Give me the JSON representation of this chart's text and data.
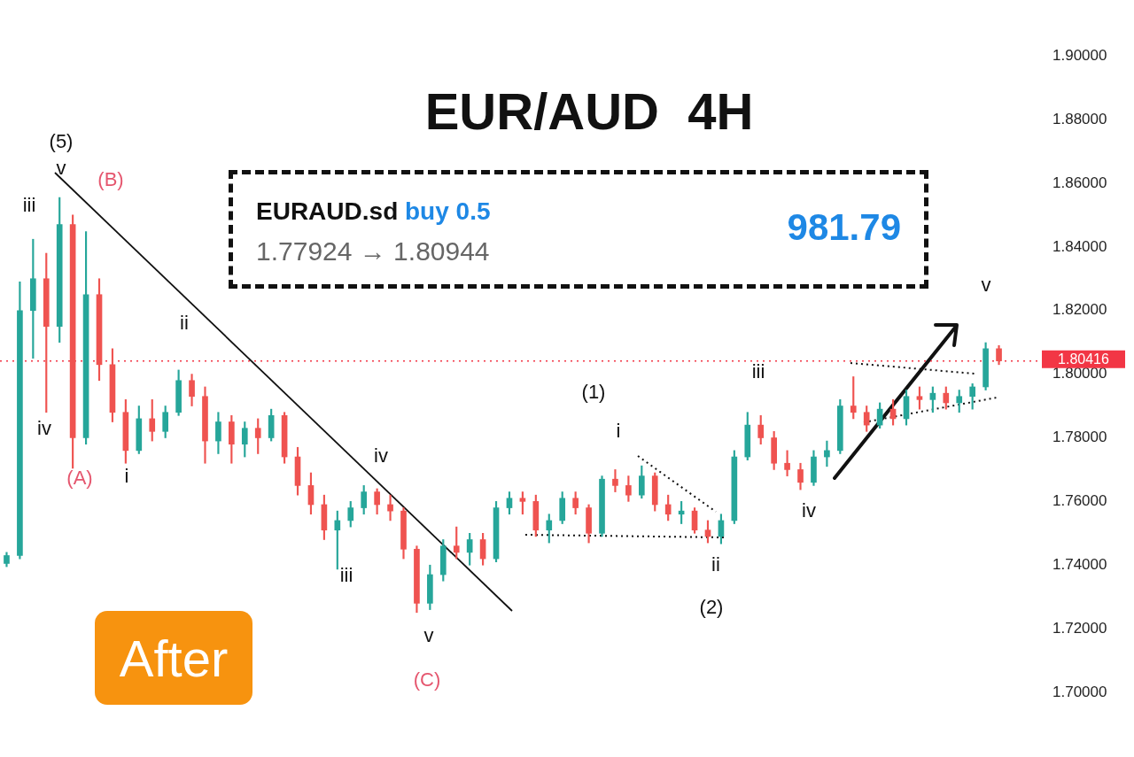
{
  "chart_data": {
    "type": "candlestick",
    "title": "EUR/AUD  4H",
    "categories": [
      null,
      null,
      null,
      null,
      null,
      null,
      null,
      null,
      null,
      null,
      null,
      null,
      null,
      null,
      null,
      null,
      null,
      null,
      null,
      null,
      null,
      null,
      null,
      null,
      null,
      null,
      null,
      null,
      null,
      null,
      null,
      null,
      null,
      null,
      null,
      null,
      null,
      null,
      null,
      null,
      null,
      null,
      null,
      null,
      null,
      null,
      null,
      null,
      null,
      null,
      null,
      null,
      null,
      null,
      null,
      null,
      null,
      null,
      null,
      null,
      null,
      null,
      null,
      null,
      null,
      null,
      null,
      null,
      null,
      null,
      null,
      null,
      null,
      null,
      null,
      null
    ],
    "ohlc": [
      [
        1.7405,
        1.744,
        1.7395,
        1.743
      ],
      [
        1.743,
        1.829,
        1.742,
        1.82
      ],
      [
        1.82,
        1.8424,
        1.805,
        1.83
      ],
      [
        1.83,
        1.838,
        1.788,
        1.815
      ],
      [
        1.815,
        1.8555,
        1.81,
        1.847
      ],
      [
        1.847,
        1.85,
        1.7704,
        1.78
      ],
      [
        1.78,
        1.8448,
        1.778,
        1.825
      ],
      [
        1.825,
        1.83,
        1.798,
        1.803
      ],
      [
        1.803,
        1.808,
        1.785,
        1.788
      ],
      [
        1.788,
        1.792,
        1.772,
        1.776
      ],
      [
        1.776,
        1.79,
        1.775,
        1.786
      ],
      [
        1.786,
        1.792,
        1.779,
        1.782
      ],
      [
        1.782,
        1.79,
        1.78,
        1.788
      ],
      [
        1.788,
        1.8013,
        1.787,
        1.798
      ],
      [
        1.798,
        1.8,
        1.79,
        1.793
      ],
      [
        1.793,
        1.796,
        1.772,
        1.779
      ],
      [
        1.779,
        1.788,
        1.775,
        1.785
      ],
      [
        1.785,
        1.787,
        1.772,
        1.778
      ],
      [
        1.778,
        1.785,
        1.774,
        1.783
      ],
      [
        1.783,
        1.786,
        1.775,
        1.78
      ],
      [
        1.78,
        1.789,
        1.779,
        1.787
      ],
      [
        1.787,
        1.788,
        1.772,
        1.774
      ],
      [
        1.774,
        1.777,
        1.762,
        1.765
      ],
      [
        1.765,
        1.769,
        1.756,
        1.759
      ],
      [
        1.759,
        1.762,
        1.748,
        1.751
      ],
      [
        1.751,
        1.757,
        1.7387,
        1.754
      ],
      [
        1.754,
        1.76,
        1.752,
        1.758
      ],
      [
        1.758,
        1.765,
        1.756,
        1.763
      ],
      [
        1.763,
        1.764,
        1.756,
        1.759
      ],
      [
        1.759,
        1.762,
        1.754,
        1.757
      ],
      [
        1.757,
        1.758,
        1.742,
        1.745
      ],
      [
        1.745,
        1.746,
        1.7251,
        1.728
      ],
      [
        1.728,
        1.74,
        1.726,
        1.737
      ],
      [
        1.737,
        1.748,
        1.735,
        1.746
      ],
      [
        1.746,
        1.752,
        1.742,
        1.744
      ],
      [
        1.744,
        1.75,
        1.74,
        1.748
      ],
      [
        1.748,
        1.75,
        1.74,
        1.742
      ],
      [
        1.742,
        1.76,
        1.741,
        1.758
      ],
      [
        1.758,
        1.763,
        1.756,
        1.761
      ],
      [
        1.761,
        1.763,
        1.756,
        1.76
      ],
      [
        1.76,
        1.762,
        1.749,
        1.751
      ],
      [
        1.751,
        1.756,
        1.747,
        1.754
      ],
      [
        1.754,
        1.763,
        1.753,
        1.761
      ],
      [
        1.761,
        1.763,
        1.756,
        1.758
      ],
      [
        1.758,
        1.759,
        1.747,
        1.75
      ],
      [
        1.75,
        1.768,
        1.749,
        1.767
      ],
      [
        1.767,
        1.77,
        1.763,
        1.765
      ],
      [
        1.765,
        1.768,
        1.76,
        1.762
      ],
      [
        1.762,
        1.7712,
        1.761,
        1.768
      ],
      [
        1.768,
        1.769,
        1.757,
        1.759
      ],
      [
        1.759,
        1.762,
        1.754,
        1.756
      ],
      [
        1.756,
        1.76,
        1.753,
        1.757
      ],
      [
        1.757,
        1.758,
        1.75,
        1.751
      ],
      [
        1.751,
        1.754,
        1.747,
        1.749
      ],
      [
        1.749,
        1.756,
        1.7467,
        1.754
      ],
      [
        1.754,
        1.776,
        1.753,
        1.774
      ],
      [
        1.774,
        1.788,
        1.773,
        1.784
      ],
      [
        1.784,
        1.787,
        1.778,
        1.78
      ],
      [
        1.78,
        1.782,
        1.77,
        1.772
      ],
      [
        1.772,
        1.776,
        1.768,
        1.77
      ],
      [
        1.77,
        1.772,
        1.7637,
        1.766
      ],
      [
        1.766,
        1.776,
        1.765,
        1.774
      ],
      [
        1.774,
        1.779,
        1.771,
        1.776
      ],
      [
        1.776,
        1.792,
        1.775,
        1.79
      ],
      [
        1.79,
        1.7992,
        1.786,
        1.788
      ],
      [
        1.788,
        1.79,
        1.782,
        1.784
      ],
      [
        1.784,
        1.791,
        1.783,
        1.789
      ],
      [
        1.789,
        1.792,
        1.784,
        1.786
      ],
      [
        1.786,
        1.795,
        1.784,
        1.793
      ],
      [
        1.793,
        1.796,
        1.789,
        1.792
      ],
      [
        1.792,
        1.796,
        1.788,
        1.794
      ],
      [
        1.794,
        1.796,
        1.789,
        1.791
      ],
      [
        1.791,
        1.795,
        1.788,
        1.793
      ],
      [
        1.793,
        1.797,
        1.789,
        1.796
      ],
      [
        1.796,
        1.8099,
        1.795,
        1.808
      ],
      [
        1.808,
        1.809,
        1.803,
        1.80416
      ]
    ],
    "ylim": [
      1.7,
      1.9
    ],
    "yticks": [
      {
        "value": 1.7,
        "label": "1.70000"
      },
      {
        "value": 1.72,
        "label": "1.72000"
      },
      {
        "value": 1.74,
        "label": "1.74000"
      },
      {
        "value": 1.76,
        "label": "1.76000"
      },
      {
        "value": 1.78,
        "label": "1.78000"
      },
      {
        "value": 1.8,
        "label": "1.80000"
      },
      {
        "value": 1.82,
        "label": "1.82000"
      },
      {
        "value": 1.84,
        "label": "1.84000"
      },
      {
        "value": 1.86,
        "label": "1.86000"
      },
      {
        "value": 1.88,
        "label": "1.88000"
      },
      {
        "value": 1.9,
        "label": "1.90000"
      }
    ],
    "tick_labels": "y",
    "grid": false,
    "legend": false,
    "ref_lines": [
      {
        "axis": "y",
        "value": 1.80416,
        "label": "1.80416",
        "color": "#f23645",
        "line_style": "dotted"
      }
    ],
    "annotations": [
      "(5)",
      "v",
      "(B)",
      "iii",
      "iv",
      "(A)",
      "i",
      "ii",
      "iv",
      "iii",
      "v",
      "(C)",
      "(1)",
      "i",
      "ii",
      "(2)",
      "iii",
      "iv",
      "v",
      "EURAUD.sd",
      "buy 0.5",
      "1.77924 → 1.80944",
      "981.79",
      "After"
    ]
  }
}
